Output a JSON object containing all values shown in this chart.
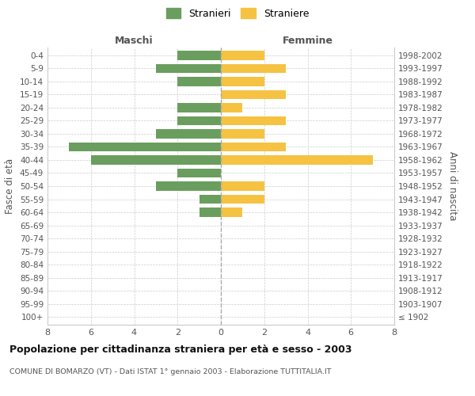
{
  "age_groups": [
    "100+",
    "95-99",
    "90-94",
    "85-89",
    "80-84",
    "75-79",
    "70-74",
    "65-69",
    "60-64",
    "55-59",
    "50-54",
    "45-49",
    "40-44",
    "35-39",
    "30-34",
    "25-29",
    "20-24",
    "15-19",
    "10-14",
    "5-9",
    "0-4"
  ],
  "birth_years": [
    "≤ 1902",
    "1903-1907",
    "1908-1912",
    "1913-1917",
    "1918-1922",
    "1923-1927",
    "1928-1932",
    "1933-1937",
    "1938-1942",
    "1943-1947",
    "1948-1952",
    "1953-1957",
    "1958-1962",
    "1963-1967",
    "1968-1972",
    "1973-1977",
    "1978-1982",
    "1983-1987",
    "1988-1992",
    "1993-1997",
    "1998-2002"
  ],
  "maschi": [
    0,
    0,
    0,
    0,
    0,
    0,
    0,
    0,
    1,
    1,
    3,
    2,
    6,
    7,
    3,
    2,
    2,
    0,
    2,
    3,
    2
  ],
  "femmine": [
    0,
    0,
    0,
    0,
    0,
    0,
    0,
    0,
    1,
    2,
    2,
    0,
    7,
    3,
    2,
    3,
    1,
    3,
    2,
    3,
    2
  ],
  "color_maschi": "#6a9e5e",
  "color_femmine": "#f5c242",
  "title": "Popolazione per cittadinanza straniera per età e sesso - 2003",
  "subtitle": "COMUNE DI BOMARZO (VT) - Dati ISTAT 1° gennaio 2003 - Elaborazione TUTTITALIA.IT",
  "label_maschi": "Maschi",
  "label_femmine": "Femmine",
  "ylabel_left": "Fasce di età",
  "ylabel_right": "Anni di nascita",
  "legend_maschi": "Stranieri",
  "legend_femmine": "Straniere",
  "xlim": 8,
  "xticks": [
    -8,
    -6,
    -4,
    -2,
    0,
    2,
    4,
    6,
    8
  ],
  "xtick_labels": [
    "8",
    "6",
    "4",
    "2",
    "0",
    "2",
    "4",
    "6",
    "8"
  ],
  "background_color": "#ffffff",
  "grid_color": "#cccccc",
  "bar_height": 0.7
}
